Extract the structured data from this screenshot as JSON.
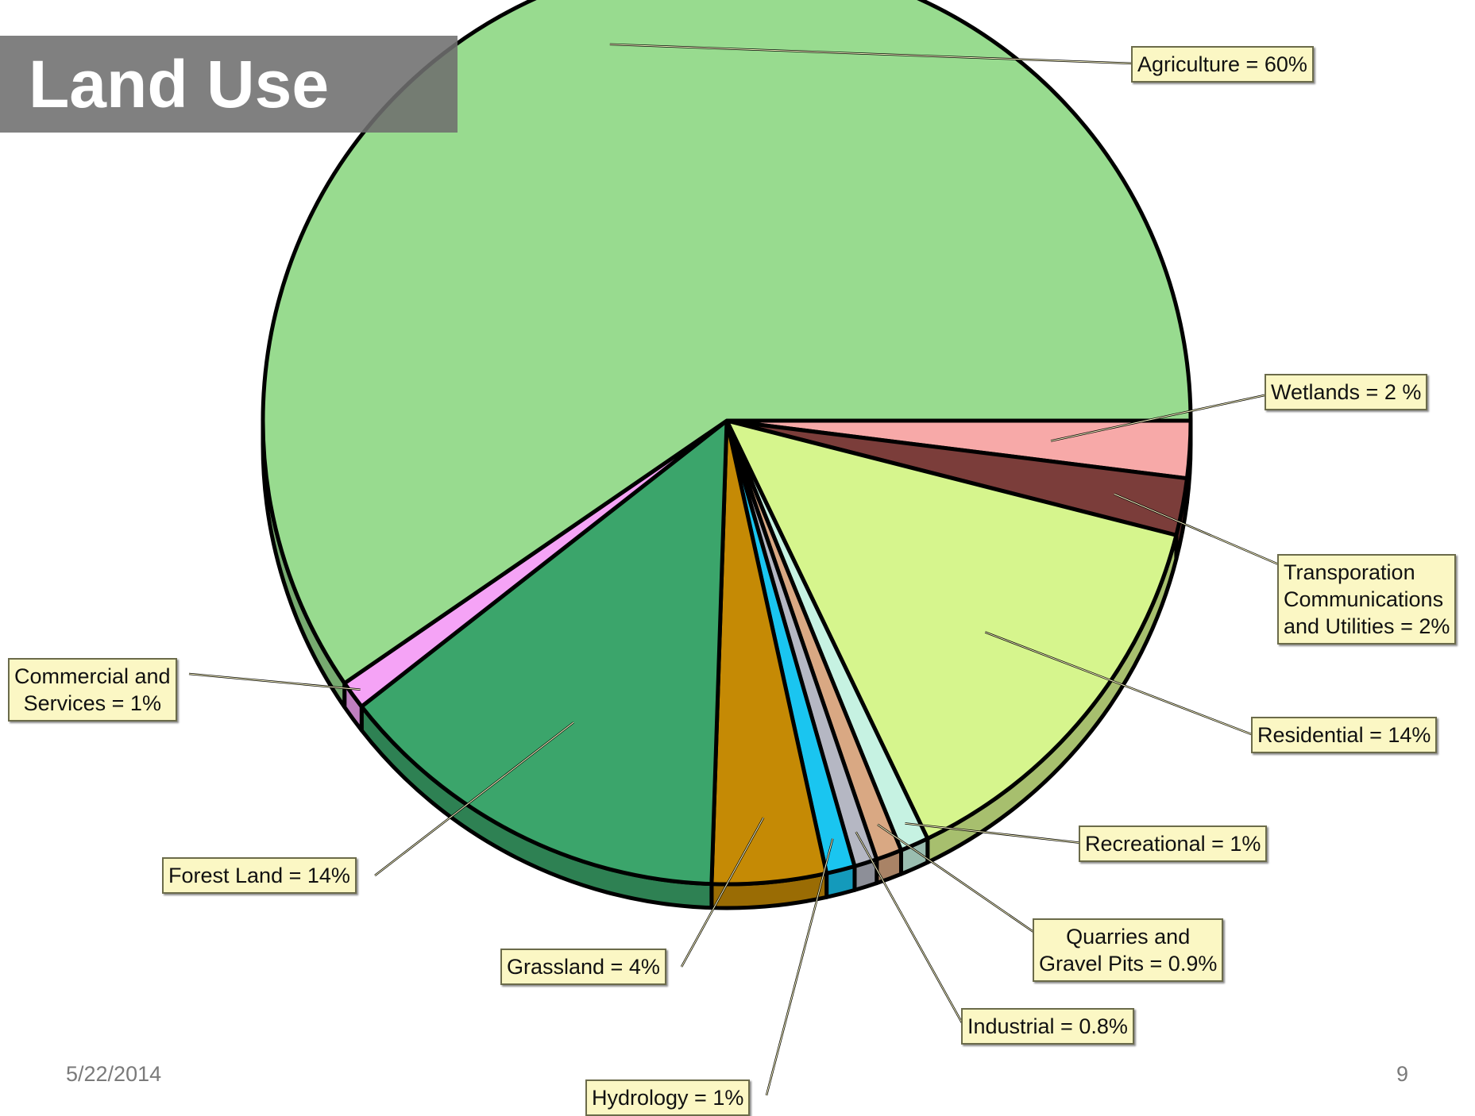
{
  "slide": {
    "title": "Land Use",
    "date": "5/22/2014",
    "page_number": "9"
  },
  "chart_data": {
    "type": "pie",
    "title": "",
    "unit": "%",
    "start_angle_deg": 0,
    "direction": "clockwise",
    "slices": [
      {
        "name": "Wetlands",
        "value": 2,
        "color": "#f7a9a8",
        "label": "Wetlands = 2 %"
      },
      {
        "name": "Transporation Communications and Utilities",
        "value": 2,
        "color": "#7b3d3a",
        "label": "Transporation\nCommunications\nand Utilities = 2%"
      },
      {
        "name": "Residential",
        "value": 14,
        "color": "#d6f58d",
        "label": "Residential = 14%"
      },
      {
        "name": "Recreational",
        "value": 1,
        "color": "#c6f2e2",
        "label": "Recreational = 1%"
      },
      {
        "name": "Quarries and Gravel Pits",
        "value": 0.9,
        "color": "#d9a883",
        "label": "Quarries and\nGravel Pits = 0.9%"
      },
      {
        "name": "Industrial",
        "value": 0.8,
        "color": "#b5b7c3",
        "label": "Industrial = 0.8%"
      },
      {
        "name": "Hydrology",
        "value": 1,
        "color": "#1ac5f0",
        "label": "Hydrology = 1%"
      },
      {
        "name": "Grassland",
        "value": 4,
        "color": "#c58a05",
        "label": "Grassland = 4%"
      },
      {
        "name": "Forest Land",
        "value": 14,
        "color": "#3ba56b",
        "label": "Forest Land = 14%"
      },
      {
        "name": "Commercial and Services",
        "value": 1,
        "color": "#f5a3f6",
        "label": "Commercial and\nServices = 1%"
      },
      {
        "name": "Agriculture",
        "value": 60,
        "color": "#98db8f",
        "label": "Agriculture = 60%"
      }
    ]
  }
}
